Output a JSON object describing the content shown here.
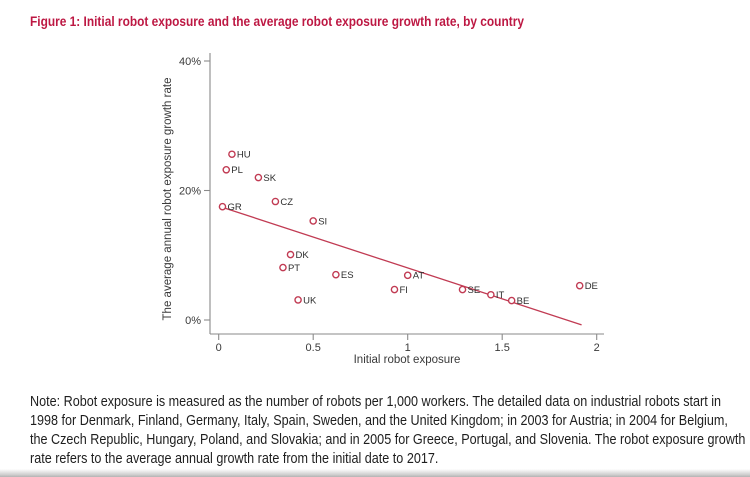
{
  "figure_title": "Figure 1: Initial robot exposure and the average robot exposure growth rate, by country",
  "colors": {
    "title": "#bd1843",
    "accent": "#c13b53",
    "axis_line": "#8a8a8a",
    "tick_text": "#3a3a3a",
    "point_label_text": "#2e2e2e"
  },
  "chart_data": {
    "type": "scatter",
    "title": "",
    "xlabel": "Initial robot exposure",
    "ylabel": "The average annual robot exposure growth rate",
    "xlim": [
      0,
      2
    ],
    "ylim_pct": [
      0,
      40
    ],
    "xticks": [
      0,
      0.5,
      1,
      1.5,
      2
    ],
    "xtick_labels": [
      "0",
      "0.5",
      "1",
      "1.5",
      "2"
    ],
    "yticks_pct": [
      0,
      20,
      40
    ],
    "ytick_labels": [
      "0%",
      "20%",
      "40%"
    ],
    "grid": false,
    "legend": "none",
    "marker": "open-circle",
    "points": [
      {
        "label": "HU",
        "x": 0.07,
        "y_pct": 25.6
      },
      {
        "label": "PL",
        "x": 0.04,
        "y_pct": 23.2
      },
      {
        "label": "SK",
        "x": 0.21,
        "y_pct": 22.0
      },
      {
        "label": "CZ",
        "x": 0.3,
        "y_pct": 18.3
      },
      {
        "label": "GR",
        "x": 0.02,
        "y_pct": 17.5
      },
      {
        "label": "SI",
        "x": 0.5,
        "y_pct": 15.3
      },
      {
        "label": "DK",
        "x": 0.38,
        "y_pct": 10.1
      },
      {
        "label": "PT",
        "x": 0.34,
        "y_pct": 8.1
      },
      {
        "label": "ES",
        "x": 0.62,
        "y_pct": 7.0
      },
      {
        "label": "AT",
        "x": 1.0,
        "y_pct": 6.9
      },
      {
        "label": "FI",
        "x": 0.93,
        "y_pct": 4.7
      },
      {
        "label": "UK",
        "x": 0.42,
        "y_pct": 3.1
      },
      {
        "label": "SE",
        "x": 1.29,
        "y_pct": 4.7
      },
      {
        "label": "IT",
        "x": 1.44,
        "y_pct": 3.9
      },
      {
        "label": "BE",
        "x": 1.55,
        "y_pct": 3.0
      },
      {
        "label": "DE",
        "x": 1.91,
        "y_pct": 5.3
      }
    ],
    "trend_line": {
      "x1": 0.02,
      "y1_pct": 17.4,
      "x2": 1.92,
      "y2_pct": -0.75
    }
  },
  "note": {
    "lines": [
      "Note: Robot exposure is measured as the number of robots per 1,000 workers. The detailed data on industrial robots start in",
      "1998 for Denmark, Finland, Germany, Italy, Spain, Sweden, and the United Kingdom; in 2003 for Austria; in 2004 for Belgium,",
      "the Czech Republic, Hungary, Poland, and Slovakia; and in 2005 for Greece, Portugal, and Slovenia. The robot exposure growth",
      "rate refers to the average annual growth rate from the initial date to 2017."
    ]
  }
}
